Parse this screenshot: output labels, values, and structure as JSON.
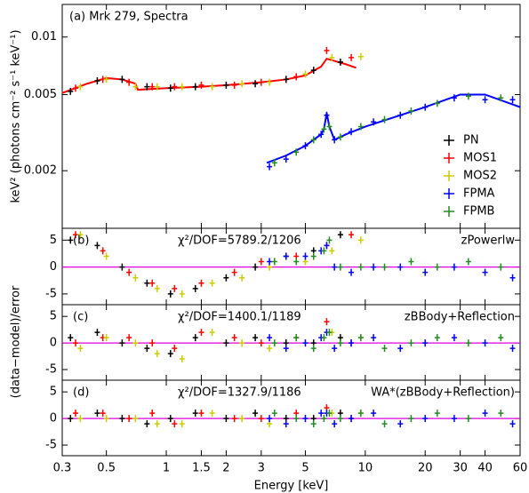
{
  "chart_data": [
    {
      "type": "scatter",
      "ylog": true,
      "xlog": true,
      "title": "(a) Mrk 279, Spectra",
      "ylabel": "keV² (photons cm⁻² s⁻¹ keV⁻¹)",
      "xlim": [
        0.3,
        60
      ],
      "ylim": [
        0.001,
        0.0148
      ],
      "yticks": [
        0.002,
        0.005,
        0.01
      ],
      "legend": "lower right",
      "series": [
        {
          "name": "PN",
          "color": "#000000",
          "x": [
            0.33,
            0.45,
            0.6,
            0.8,
            1.05,
            1.4,
            2.0,
            2.8,
            4.0,
            5.5,
            7.5
          ],
          "values": [
            0.0052,
            0.0059,
            0.006,
            0.0055,
            0.0054,
            0.0055,
            0.0056,
            0.0057,
            0.006,
            0.0067,
            0.0074
          ]
        },
        {
          "name": "MOS1",
          "color": "#ff0000",
          "x": [
            0.35,
            0.48,
            0.65,
            0.85,
            1.1,
            1.5,
            2.2,
            3.0,
            4.5,
            6.4,
            8.5
          ],
          "values": [
            0.0054,
            0.006,
            0.0058,
            0.0055,
            0.0055,
            0.0056,
            0.0056,
            0.0058,
            0.0062,
            0.0085,
            0.0078
          ]
        },
        {
          "name": "MOS2",
          "color": "#cccc00",
          "x": [
            0.37,
            0.5,
            0.7,
            0.9,
            1.2,
            1.7,
            2.4,
            3.3,
            5.0,
            6.8,
            9.5
          ],
          "values": [
            0.0055,
            0.006,
            0.0055,
            0.0055,
            0.0055,
            0.0055,
            0.0057,
            0.0058,
            0.0064,
            0.0078,
            0.0079
          ]
        },
        {
          "name": "FPMA",
          "color": "#0000ff",
          "x": [
            3.3,
            4.0,
            5.0,
            6.0,
            6.4,
            7.0,
            8.5,
            11,
            15,
            20,
            28,
            40,
            55
          ],
          "values": [
            0.0021,
            0.0023,
            0.0027,
            0.0031,
            0.0039,
            0.0029,
            0.0032,
            0.0036,
            0.0039,
            0.0043,
            0.0048,
            0.0047,
            0.0047
          ]
        },
        {
          "name": "FPMB",
          "color": "#228b22",
          "x": [
            3.5,
            4.5,
            5.5,
            6.2,
            6.6,
            7.5,
            9.5,
            12.5,
            17,
            23,
            33,
            48
          ],
          "values": [
            0.0022,
            0.0025,
            0.0029,
            0.0033,
            0.0034,
            0.003,
            0.0034,
            0.0037,
            0.0041,
            0.0045,
            0.0049,
            0.0048
          ]
        }
      ],
      "models": [
        {
          "color": "#ff0000",
          "x": [
            0.3,
            0.4,
            0.5,
            0.6,
            0.7,
            0.72,
            1,
            1.5,
            2,
            3,
            4,
            5,
            6,
            6.4,
            7,
            8,
            9
          ],
          "values": [
            0.0051,
            0.0057,
            0.0061,
            0.006,
            0.0057,
            0.0053,
            0.0054,
            0.0055,
            0.0056,
            0.0058,
            0.006,
            0.0063,
            0.007,
            0.0077,
            0.0075,
            0.0072,
            0.0069
          ]
        },
        {
          "color": "#0000ff",
          "x": [
            3.2,
            4,
            5,
            6,
            6.2,
            6.4,
            6.6,
            7,
            8,
            10,
            20,
            30,
            40,
            60
          ],
          "values": [
            0.0022,
            0.0024,
            0.0027,
            0.0031,
            0.0033,
            0.004,
            0.0034,
            0.0029,
            0.0031,
            0.0034,
            0.0043,
            0.005,
            0.005,
            0.0043
          ]
        }
      ]
    },
    {
      "type": "residual",
      "xlog": true,
      "label": "(b)",
      "chi2": "χ²/DOF=5789.2/1206",
      "model": "zPowerlw",
      "xlim": [
        0.3,
        60
      ],
      "ylim": [
        -7,
        7.2
      ],
      "yticks": [
        -5,
        0,
        5
      ],
      "hline": {
        "value": 0,
        "color": "#e000e0"
      },
      "series": [
        {
          "color": "#000000",
          "x": [
            0.33,
            0.45,
            0.6,
            0.8,
            1.05,
            1.4,
            2.0,
            2.8,
            4.0,
            5.5,
            7.5
          ],
          "values": [
            5,
            4,
            0,
            -3,
            -5,
            -4,
            -2,
            0,
            2,
            3,
            6
          ]
        },
        {
          "color": "#ff0000",
          "x": [
            0.35,
            0.48,
            0.65,
            0.85,
            1.1,
            1.5,
            2.2,
            3.0,
            4.5,
            6.4,
            8.5
          ],
          "values": [
            6,
            3,
            -1,
            -3,
            -4,
            -3,
            -1,
            1,
            2,
            4,
            6
          ]
        },
        {
          "color": "#cccc00",
          "x": [
            0.37,
            0.5,
            0.7,
            0.9,
            1.2,
            1.7,
            2.4,
            3.3,
            5.0,
            6.8,
            9.5
          ],
          "values": [
            6,
            2,
            -2,
            -4,
            -5,
            -3,
            -2,
            0,
            1,
            3,
            5
          ]
        },
        {
          "color": "#0000ff",
          "x": [
            3.3,
            4.0,
            5.0,
            6.0,
            6.4,
            7.0,
            8.5,
            11,
            15,
            20,
            28,
            40,
            55
          ],
          "values": [
            1,
            2,
            2,
            3,
            4,
            0,
            -1,
            0,
            0,
            -1,
            0,
            -1,
            -2
          ]
        },
        {
          "color": "#228b22",
          "x": [
            3.5,
            4.5,
            5.5,
            6.2,
            6.6,
            7.5,
            9.5,
            12.5,
            17,
            23,
            33,
            48
          ],
          "values": [
            1,
            1,
            2,
            3,
            5,
            0,
            0,
            0,
            1,
            0,
            1,
            0
          ]
        }
      ]
    },
    {
      "type": "residual",
      "xlog": true,
      "label": "(c)",
      "chi2": "χ²/DOF=1400.1/1189",
      "model": "zBBody+Reflection",
      "ylabel": "(data−model)/error",
      "xlim": [
        0.3,
        60
      ],
      "ylim": [
        -7,
        7.2
      ],
      "yticks": [
        -5,
        0,
        5
      ],
      "hline": {
        "value": 0,
        "color": "#e000e0"
      },
      "series": [
        {
          "color": "#000000",
          "x": [
            0.33,
            0.45,
            0.6,
            0.8,
            1.05,
            1.4,
            2.0,
            2.8,
            4.0,
            5.5,
            7.5
          ],
          "values": [
            1,
            2,
            0,
            -1,
            -2,
            1,
            0,
            1,
            0,
            0,
            1
          ]
        },
        {
          "color": "#ff0000",
          "x": [
            0.35,
            0.48,
            0.65,
            0.85,
            1.1,
            1.5,
            2.2,
            3.0,
            4.5,
            6.4,
            8.5
          ],
          "values": [
            0,
            1,
            1,
            0,
            -1,
            2,
            1,
            0,
            1,
            4,
            0
          ]
        },
        {
          "color": "#cccc00",
          "x": [
            0.37,
            0.5,
            0.7,
            0.9,
            1.2,
            1.7,
            2.4,
            3.3,
            5.0,
            6.8,
            9.5
          ],
          "values": [
            -1,
            1,
            0,
            -2,
            -3,
            2,
            0,
            -1,
            0,
            2,
            1
          ]
        },
        {
          "color": "#0000ff",
          "x": [
            3.3,
            4.0,
            5.0,
            6.0,
            6.4,
            7.0,
            8.5,
            11,
            15,
            20,
            28,
            40,
            55
          ],
          "values": [
            1,
            -1,
            0,
            1,
            2,
            -1,
            0,
            1,
            -1,
            0,
            1,
            0,
            -1
          ]
        },
        {
          "color": "#228b22",
          "x": [
            3.5,
            4.5,
            5.5,
            6.2,
            6.6,
            7.5,
            9.5,
            12.5,
            17,
            23,
            33,
            48
          ],
          "values": [
            0,
            1,
            -1,
            1,
            2,
            0,
            1,
            -1,
            0,
            1,
            0,
            1
          ]
        }
      ]
    },
    {
      "type": "residual",
      "xlog": true,
      "label": "(d)",
      "chi2": "χ²/DOF=1327.9/1186",
      "model": "WA*(zBBody+Reflection)",
      "xlabel": "Energy [keV]",
      "xlim": [
        0.3,
        60
      ],
      "ylim": [
        -7,
        7.2
      ],
      "yticks": [
        -5,
        0,
        5
      ],
      "hline": {
        "value": 0,
        "color": "#e000e0"
      },
      "xticks": [
        0.3,
        0.5,
        1,
        1.5,
        2,
        3,
        5,
        10,
        20,
        30,
        40,
        60
      ],
      "series": [
        {
          "color": "#000000",
          "x": [
            0.33,
            0.45,
            0.6,
            0.8,
            1.05,
            1.4,
            2.0,
            2.8,
            4.0,
            5.5,
            7.5
          ],
          "values": [
            0,
            1,
            0,
            -1,
            0,
            1,
            0,
            1,
            0,
            0,
            1
          ]
        },
        {
          "color": "#ff0000",
          "x": [
            0.35,
            0.48,
            0.65,
            0.85,
            1.1,
            1.5,
            2.2,
            3.0,
            4.5,
            6.4,
            8.5
          ],
          "values": [
            1,
            1,
            0,
            1,
            -1,
            1,
            0,
            0,
            1,
            2,
            0
          ]
        },
        {
          "color": "#cccc00",
          "x": [
            0.37,
            0.5,
            0.7,
            0.9,
            1.2,
            1.7,
            2.4,
            3.3,
            5.0,
            6.8,
            9.5
          ],
          "values": [
            0,
            0,
            0,
            -1,
            -1,
            1,
            0,
            -1,
            0,
            1,
            1
          ]
        },
        {
          "color": "#0000ff",
          "x": [
            3.3,
            4.0,
            5.0,
            6.0,
            6.4,
            7.0,
            8.5,
            11,
            15,
            20,
            28,
            40,
            55
          ],
          "values": [
            0,
            -1,
            0,
            1,
            1,
            -1,
            0,
            1,
            -1,
            0,
            0,
            1,
            -1
          ]
        },
        {
          "color": "#228b22",
          "x": [
            3.5,
            4.5,
            5.5,
            6.2,
            6.6,
            7.5,
            9.5,
            12.5,
            17,
            23,
            33,
            48
          ],
          "values": [
            1,
            0,
            -1,
            0,
            1,
            0,
            1,
            -1,
            0,
            1,
            0,
            1
          ]
        }
      ]
    }
  ]
}
